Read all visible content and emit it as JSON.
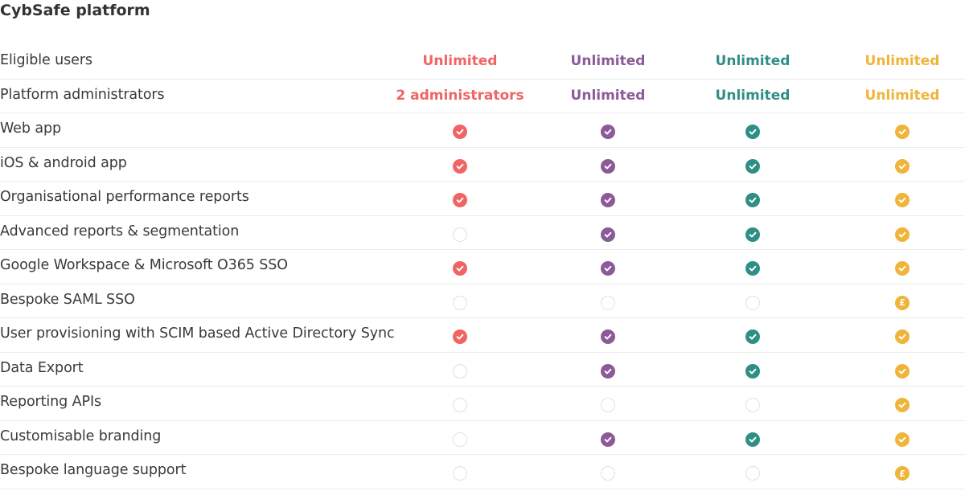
{
  "section_title": "CybSafe platform",
  "colors": [
    "#f06464",
    "#8b5a99",
    "#2f8f85",
    "#f0b43b"
  ],
  "rows": [
    {
      "label": "Eligible users",
      "cells": [
        {
          "type": "text",
          "value": "Unlimited"
        },
        {
          "type": "text",
          "value": "Unlimited"
        },
        {
          "type": "text",
          "value": "Unlimited"
        },
        {
          "type": "text",
          "value": "Unlimited"
        }
      ]
    },
    {
      "label": "Platform administrators",
      "cells": [
        {
          "type": "text",
          "value": "2 administrators"
        },
        {
          "type": "text",
          "value": "Unlimited"
        },
        {
          "type": "text",
          "value": "Unlimited"
        },
        {
          "type": "text",
          "value": "Unlimited"
        }
      ]
    },
    {
      "label": "Web app",
      "cells": [
        {
          "type": "check"
        },
        {
          "type": "check"
        },
        {
          "type": "check"
        },
        {
          "type": "check"
        }
      ]
    },
    {
      "label": "iOS & android app",
      "cells": [
        {
          "type": "check"
        },
        {
          "type": "check"
        },
        {
          "type": "check"
        },
        {
          "type": "check"
        }
      ]
    },
    {
      "label": "Organisational performance reports",
      "cells": [
        {
          "type": "check"
        },
        {
          "type": "check"
        },
        {
          "type": "check"
        },
        {
          "type": "check"
        }
      ]
    },
    {
      "label": "Advanced reports & segmentation",
      "cells": [
        {
          "type": "empty"
        },
        {
          "type": "check"
        },
        {
          "type": "check"
        },
        {
          "type": "check"
        }
      ]
    },
    {
      "label": "Google Workspace & Microsoft O365 SSO",
      "cells": [
        {
          "type": "check"
        },
        {
          "type": "check"
        },
        {
          "type": "check"
        },
        {
          "type": "check"
        }
      ]
    },
    {
      "label": "Bespoke SAML SSO",
      "cells": [
        {
          "type": "empty"
        },
        {
          "type": "empty"
        },
        {
          "type": "empty"
        },
        {
          "type": "pound",
          "value": "£"
        }
      ]
    },
    {
      "label": "User provisioning with SCIM based Active Directory Sync",
      "cells": [
        {
          "type": "check"
        },
        {
          "type": "check"
        },
        {
          "type": "check"
        },
        {
          "type": "check"
        }
      ]
    },
    {
      "label": "Data Export",
      "cells": [
        {
          "type": "empty"
        },
        {
          "type": "check"
        },
        {
          "type": "check"
        },
        {
          "type": "check"
        }
      ]
    },
    {
      "label": "Reporting APIs",
      "cells": [
        {
          "type": "empty"
        },
        {
          "type": "empty"
        },
        {
          "type": "empty"
        },
        {
          "type": "check"
        }
      ]
    },
    {
      "label": "Customisable branding",
      "cells": [
        {
          "type": "empty"
        },
        {
          "type": "check"
        },
        {
          "type": "check"
        },
        {
          "type": "check"
        }
      ]
    },
    {
      "label": "Bespoke language support",
      "cells": [
        {
          "type": "empty"
        },
        {
          "type": "empty"
        },
        {
          "type": "empty"
        },
        {
          "type": "pound",
          "value": "£"
        }
      ]
    }
  ]
}
